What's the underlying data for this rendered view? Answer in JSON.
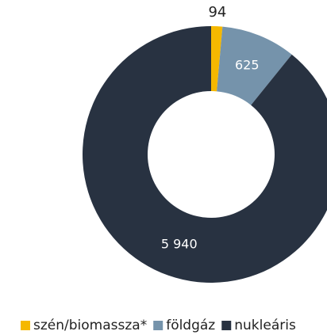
{
  "chart_data": {
    "type": "donut",
    "categories": [
      "szén/biomassza*",
      "földgáz",
      "nukleáris"
    ],
    "values": [
      94,
      625,
      5940
    ],
    "value_labels": [
      "94",
      "625",
      "5 940"
    ],
    "colors": [
      "#f5b800",
      "#7593ab",
      "#283241"
    ],
    "legend": "bottom"
  }
}
